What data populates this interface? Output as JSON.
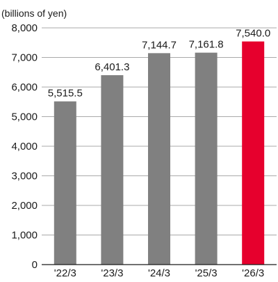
{
  "chart_data": {
    "type": "bar",
    "unit_label": "(billions of yen)",
    "categories": [
      "'22/3",
      "'23/3",
      "'24/3",
      "'25/3",
      "'26/3"
    ],
    "values": [
      5515.5,
      6401.3,
      7144.7,
      7161.8,
      7540.0
    ],
    "data_labels": [
      "5,515.5",
      "6,401.3",
      "7,144.7",
      "7,161.8",
      "7,540.0"
    ],
    "ylim": [
      0,
      8000
    ],
    "yticks": [
      0,
      1000,
      2000,
      3000,
      4000,
      5000,
      6000,
      7000,
      8000
    ],
    "ytick_labels": [
      "0",
      "1,000",
      "2,000",
      "3,000",
      "4,000",
      "5,000",
      "6,000",
      "7,000",
      "8,000"
    ],
    "grid": true,
    "colors": {
      "actual": "#808080",
      "highlight": "#e6002d"
    },
    "highlight_index": 4
  }
}
